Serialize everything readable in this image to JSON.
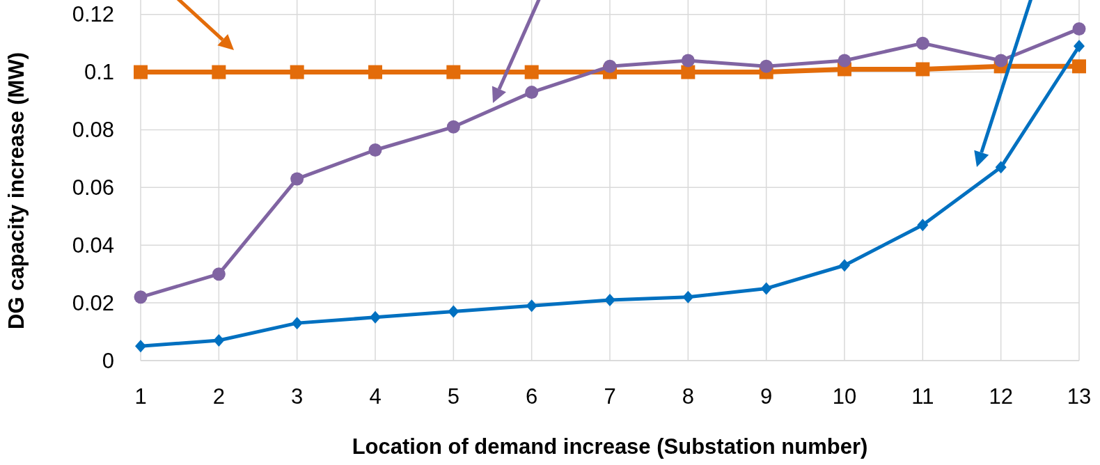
{
  "chart_data": {
    "type": "line",
    "xlabel": "Location of demand increase (Substation number)",
    "ylabel": "DG capacity increase (MW)",
    "x": [
      1,
      2,
      3,
      4,
      5,
      6,
      7,
      8,
      9,
      10,
      11,
      12,
      13
    ],
    "xlim": [
      1,
      13
    ],
    "xticks": [
      1,
      2,
      3,
      4,
      5,
      6,
      7,
      8,
      9,
      10,
      11,
      12,
      13
    ],
    "ylim": [
      0,
      0.125
    ],
    "yticks": [
      0,
      0.02,
      0.04,
      0.06,
      0.08,
      0.1,
      0.12
    ],
    "grid": true,
    "line_style": "solid",
    "series": [
      {
        "color": "#e36c0a",
        "marker": "square",
        "values": [
          0.1,
          0.1,
          0.1,
          0.1,
          0.1,
          0.1,
          0.1,
          0.1,
          0.1,
          0.101,
          0.101,
          0.102,
          0.102
        ]
      },
      {
        "color": "#8064a2",
        "marker": "circle",
        "values": [
          0.022,
          0.03,
          0.063,
          0.073,
          0.081,
          0.093,
          0.102,
          0.104,
          0.102,
          0.104,
          0.11,
          0.104,
          0.115
        ]
      },
      {
        "color": "#0070c0",
        "marker": "diamond",
        "values": [
          0.005,
          0.007,
          0.013,
          0.015,
          0.017,
          0.019,
          0.021,
          0.022,
          0.025,
          0.033,
          0.047,
          0.067,
          0.109
        ]
      }
    ]
  }
}
